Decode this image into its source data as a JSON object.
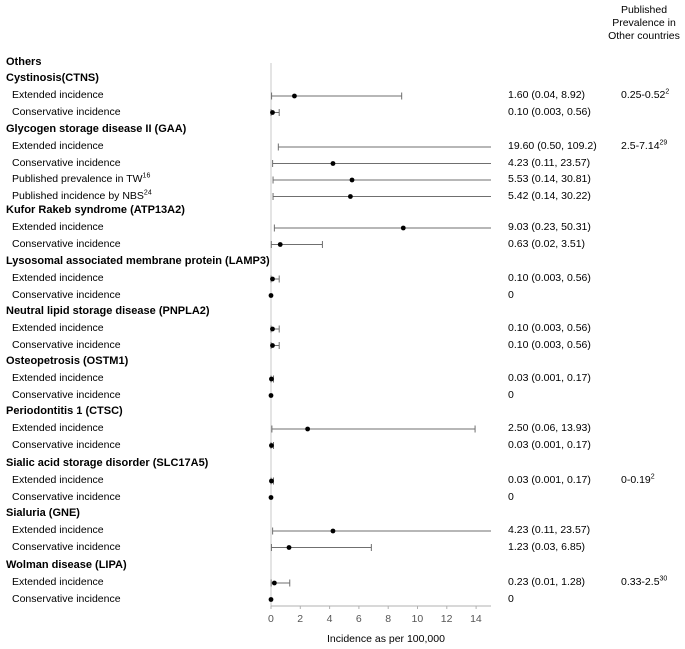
{
  "header": {
    "published_prevalence_line1": "Published",
    "published_prevalence_line2": "Prevalence in",
    "published_prevalence_line3": "Other countries"
  },
  "section_title": "Others",
  "chart_data": {
    "type": "forest",
    "xlabel": "Incidence as per 100,000",
    "xlim": [
      0,
      15
    ],
    "xticks": [
      0,
      2,
      4,
      6,
      8,
      10,
      12,
      14
    ],
    "groups": [
      {
        "name": "Cystinosis(CTNS)",
        "published": "0.25-0.52",
        "published_sup": "2",
        "rows": [
          {
            "label": "Extended incidence",
            "label_sup": "",
            "point": 1.6,
            "low": 0.04,
            "high": 8.92,
            "text": "1.60 (0.04, 8.92)"
          },
          {
            "label": "Conservative incidence",
            "label_sup": "",
            "point": 0.1,
            "low": 0.003,
            "high": 0.56,
            "text": "0.10 (0.003, 0.56)"
          }
        ]
      },
      {
        "name": "Glycogen storage disease II (GAA)",
        "published": "2.5-7.14",
        "published_sup": "29",
        "rows": [
          {
            "label": "Extended incidence",
            "label_sup": "",
            "point": 19.6,
            "low": 0.5,
            "high": 109.2,
            "text": "19.60 (0.50, 109.2)"
          },
          {
            "label": "Conservative incidence",
            "label_sup": "",
            "point": 4.23,
            "low": 0.11,
            "high": 23.57,
            "text": "4.23 (0.11, 23.57)"
          },
          {
            "label": "Published prevalence in TW",
            "label_sup": "16",
            "point": 5.53,
            "low": 0.14,
            "high": 30.81,
            "text": "5.53 (0.14, 30.81)"
          },
          {
            "label": "Published incidence by NBS",
            "label_sup": "24",
            "point": 5.42,
            "low": 0.14,
            "high": 30.22,
            "text": "5.42 (0.14, 30.22)"
          }
        ]
      },
      {
        "name": "Kufor Rakeb syndrome (ATP13A2)",
        "published": "",
        "published_sup": "",
        "rows": [
          {
            "label": "Extended incidence",
            "label_sup": "",
            "point": 9.03,
            "low": 0.23,
            "high": 50.31,
            "text": "9.03 (0.23, 50.31)"
          },
          {
            "label": "Conservative incidence",
            "label_sup": "",
            "point": 0.63,
            "low": 0.02,
            "high": 3.51,
            "text": "0.63 (0.02, 3.51)"
          }
        ]
      },
      {
        "name": "Lysosomal associated membrane protein (LAMP3)",
        "published": "",
        "published_sup": "",
        "rows": [
          {
            "label": "Extended incidence",
            "label_sup": "",
            "point": 0.1,
            "low": 0.003,
            "high": 0.56,
            "text": "0.10 (0.003, 0.56)"
          },
          {
            "label": "Conservative incidence",
            "label_sup": "",
            "point": 0,
            "low": 0,
            "high": 0,
            "text": "0"
          }
        ]
      },
      {
        "name": "Neutral lipid storage disease (PNPLA2)",
        "published": "",
        "published_sup": "",
        "rows": [
          {
            "label": "Extended incidence",
            "label_sup": "",
            "point": 0.1,
            "low": 0.003,
            "high": 0.56,
            "text": "0.10 (0.003, 0.56)"
          },
          {
            "label": "Conservative incidence",
            "label_sup": "",
            "point": 0.1,
            "low": 0.003,
            "high": 0.56,
            "text": "0.10 (0.003, 0.56)"
          }
        ]
      },
      {
        "name": "Osteopetrosis (OSTM1)",
        "published": "",
        "published_sup": "",
        "rows": [
          {
            "label": "Extended incidence",
            "label_sup": "",
            "point": 0.03,
            "low": 0.001,
            "high": 0.17,
            "text": "0.03 (0.001, 0.17)"
          },
          {
            "label": "Conservative incidence",
            "label_sup": "",
            "point": 0,
            "low": 0,
            "high": 0,
            "text": "0"
          }
        ]
      },
      {
        "name": "Periodontitis 1 (CTSC)",
        "published": "",
        "published_sup": "",
        "rows": [
          {
            "label": "Extended incidence",
            "label_sup": "",
            "point": 2.5,
            "low": 0.06,
            "high": 13.93,
            "text": "2.50 (0.06, 13.93)"
          },
          {
            "label": "Conservative incidence",
            "label_sup": "",
            "point": 0.03,
            "low": 0.001,
            "high": 0.17,
            "text": "0.03 (0.001, 0.17)"
          }
        ]
      },
      {
        "name": "Sialic acid storage disorder (SLC17A5)",
        "published": "0-0.19",
        "published_sup": "2",
        "rows": [
          {
            "label": "Extended incidence",
            "label_sup": "",
            "point": 0.03,
            "low": 0.001,
            "high": 0.17,
            "text": "0.03 (0.001, 0.17)"
          },
          {
            "label": "Conservative incidence",
            "label_sup": "",
            "point": 0,
            "low": 0,
            "high": 0,
            "text": "0"
          }
        ]
      },
      {
        "name": "Sialuria (GNE)",
        "published": "",
        "published_sup": "",
        "rows": [
          {
            "label": "Extended incidence",
            "label_sup": "",
            "point": 4.23,
            "low": 0.11,
            "high": 23.57,
            "text": "4.23 (0.11, 23.57)"
          },
          {
            "label": "Conservative incidence",
            "label_sup": "",
            "point": 1.23,
            "low": 0.03,
            "high": 6.85,
            "text": "1.23 (0.03, 6.85)"
          }
        ]
      },
      {
        "name": "Wolman disease (LIPA)",
        "published": "0.33-2.5",
        "published_sup": "30",
        "rows": [
          {
            "label": "Extended incidence",
            "label_sup": "",
            "point": 0.23,
            "low": 0.01,
            "high": 1.28,
            "text": "0.23 (0.01, 1.28)"
          },
          {
            "label": "Conservative incidence",
            "label_sup": "",
            "point": 0,
            "low": 0,
            "high": 0,
            "text": "0"
          }
        ]
      }
    ]
  }
}
